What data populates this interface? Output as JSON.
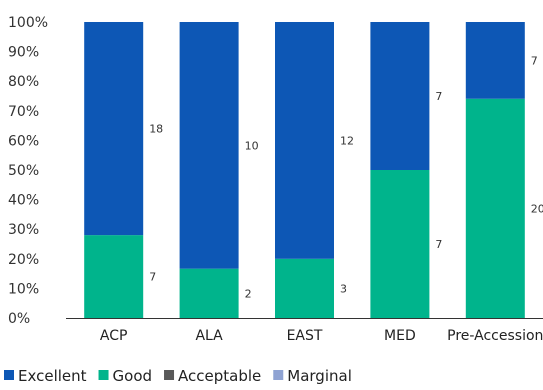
{
  "chart_data": {
    "type": "bar",
    "stacked": true,
    "percent_stacked": true,
    "categories": [
      "ACP",
      "ALA",
      "EAST",
      "MED",
      "Pre-Accession"
    ],
    "series": [
      {
        "name": "Excellent",
        "values": [
          18,
          10,
          12,
          7,
          7
        ],
        "color": "#0d57b5"
      },
      {
        "name": "Good",
        "values": [
          7,
          2,
          3,
          7,
          20
        ],
        "color": "#00b48c"
      },
      {
        "name": "Acceptable",
        "values": [
          0,
          0,
          0,
          0,
          0
        ],
        "color": "#595959"
      },
      {
        "name": "Marginal",
        "values": [
          0,
          0,
          0,
          0,
          0
        ],
        "color": "#8fa3d3"
      }
    ],
    "y_ticks": [
      "0%",
      "10%",
      "20%",
      "30%",
      "40%",
      "50%",
      "60%",
      "70%",
      "80%",
      "90%",
      "100%"
    ],
    "ylim": [
      0,
      100
    ],
    "grid": false,
    "legend_position": "bottom-left"
  }
}
